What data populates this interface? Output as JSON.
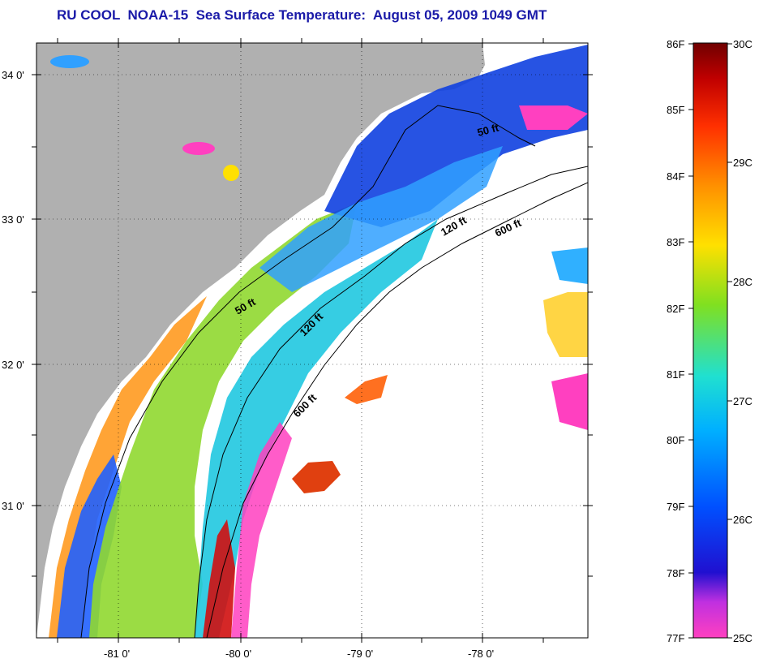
{
  "title": "RU COOL  NOAA-15  Sea Surface Temperature:  August 05, 2009 1049 GMT",
  "colors": {
    "land": "#b0b0b0",
    "no_data": "#ffffff",
    "coast_line": "#000080"
  },
  "lat_labels": [
    "34 0'",
    "33 0'",
    "32 0'",
    "31 0'"
  ],
  "lon_labels": [
    "-81 0'",
    "-80 0'",
    "-79 0'",
    "-78 0'"
  ],
  "contours": [
    "50 ft",
    "50 ft",
    "120 ft",
    "120 ft",
    "600 ft",
    "600 ft"
  ],
  "colorbar": {
    "fahrenheit": [
      "86F",
      "85F",
      "84F",
      "83F",
      "82F",
      "81F",
      "80F",
      "79F",
      "78F",
      "77F"
    ],
    "celsius": [
      "30C",
      "29C",
      "28C",
      "27C",
      "26C",
      "25C"
    ],
    "stops": [
      "#7a0000",
      "#d00000",
      "#ff4000",
      "#ff9000",
      "#ffe000",
      "#90e000",
      "#20e0c0",
      "#00c0ff",
      "#0060ff",
      "#0010d0",
      "#8030e0",
      "#ff40c0"
    ]
  }
}
